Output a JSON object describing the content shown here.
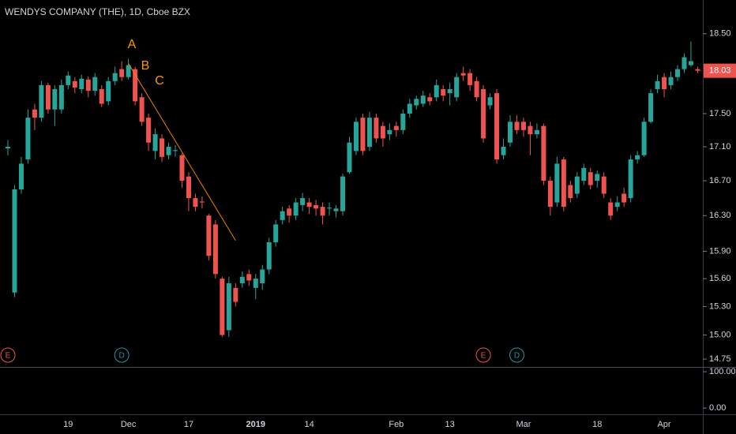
{
  "chart_data": {
    "type": "candlestick",
    "title": "WENDYS COMPANY (THE), 1D, Cboe BZX",
    "log_scale": true,
    "grid": false,
    "up_color": "#26a69a",
    "down_color": "#ef5350",
    "categories": [
      null,
      null,
      null,
      null,
      null,
      null,
      null,
      null,
      null,
      "19",
      null,
      null,
      null,
      null,
      null,
      null,
      null,
      null,
      "Dec",
      null,
      null,
      null,
      null,
      null,
      null,
      null,
      null,
      "17",
      null,
      null,
      null,
      null,
      null,
      null,
      null,
      null,
      null,
      "2019",
      null,
      null,
      null,
      null,
      null,
      null,
      null,
      "14",
      null,
      null,
      null,
      null,
      null,
      null,
      null,
      null,
      null,
      null,
      null,
      null,
      "Feb",
      null,
      null,
      null,
      null,
      null,
      null,
      null,
      "13",
      null,
      null,
      null,
      null,
      null,
      null,
      null,
      null,
      null,
      null,
      "Mar",
      null,
      null,
      null,
      null,
      null,
      null,
      null,
      null,
      null,
      null,
      "18",
      null,
      null,
      null,
      null,
      null,
      null,
      null,
      null,
      null,
      "Apr",
      null,
      null,
      null,
      null,
      null
    ],
    "open": [
      17.08,
      15.45,
      16.6,
      16.95,
      17.55,
      17.45,
      17.85,
      17.55,
      17.55,
      17.85,
      17.9,
      17.8,
      17.92,
      17.78,
      17.8,
      17.65,
      17.9,
      18.05,
      17.95,
      18.05,
      17.7,
      17.45,
      17.05,
      17.2,
      17.0,
      17.05,
      17.0,
      16.75,
      16.5,
      16.46,
      16.3,
      16.2,
      15.6,
      15.05,
      15.5,
      15.55,
      15.65,
      15.5,
      15.55,
      15.7,
      16.0,
      16.25,
      16.38,
      16.3,
      16.42,
      16.45,
      16.42,
      16.4,
      16.38,
      16.35,
      16.35,
      16.8,
      17.05,
      17.45,
      17.1,
      17.45,
      17.35,
      17.25,
      17.35,
      17.3,
      17.5,
      17.6,
      17.62,
      17.7,
      17.7,
      17.8,
      17.75,
      17.7,
      18.0,
      18.0,
      17.9,
      17.8,
      17.6,
      17.75,
      17.0,
      17.15,
      17.4,
      17.4,
      17.35,
      17.25,
      17.35,
      16.7,
      16.45,
      16.95,
      16.65,
      16.55,
      16.7,
      16.8,
      16.7,
      16.75,
      16.45,
      16.4,
      16.55,
      16.5,
      16.95,
      17.0,
      17.4,
      17.8,
      17.95,
      17.85,
      17.95,
      18.05,
      18.1,
      18.05
    ],
    "high": [
      17.18,
      16.65,
      16.98,
      17.55,
      17.62,
      17.9,
      17.88,
      17.85,
      17.92,
      18.02,
      17.95,
      17.98,
      17.96,
      18.0,
      17.85,
      17.95,
      18.08,
      18.15,
      18.18,
      18.08,
      17.75,
      17.5,
      17.32,
      17.25,
      17.15,
      17.12,
      17.02,
      16.8,
      16.55,
      16.52,
      16.32,
      16.25,
      15.62,
      15.62,
      15.55,
      15.68,
      15.7,
      15.65,
      15.75,
      16.05,
      16.25,
      16.4,
      16.42,
      16.5,
      16.56,
      16.5,
      16.48,
      16.45,
      16.45,
      16.42,
      16.78,
      17.22,
      17.45,
      17.5,
      17.52,
      17.5,
      17.4,
      17.38,
      17.4,
      17.55,
      17.68,
      17.72,
      17.78,
      17.75,
      17.92,
      17.85,
      17.88,
      18.0,
      18.08,
      18.05,
      17.95,
      17.85,
      17.75,
      17.8,
      17.2,
      17.48,
      17.48,
      17.45,
      17.4,
      17.38,
      17.38,
      16.75,
      16.98,
      16.98,
      16.7,
      16.8,
      16.9,
      16.85,
      16.82,
      16.8,
      16.5,
      16.52,
      16.62,
      17.0,
      17.05,
      17.45,
      17.8,
      17.98,
      18.0,
      18.02,
      18.1,
      18.25,
      18.4,
      18.08
    ],
    "low": [
      17.0,
      15.4,
      16.55,
      16.9,
      17.3,
      17.4,
      17.5,
      17.35,
      17.5,
      17.8,
      17.75,
      17.75,
      17.7,
      17.72,
      17.58,
      17.6,
      17.85,
      17.9,
      17.92,
      17.6,
      17.35,
      17.05,
      16.95,
      16.92,
      16.95,
      16.98,
      16.62,
      16.35,
      16.35,
      16.38,
      15.8,
      15.6,
      14.98,
      14.98,
      15.3,
      15.5,
      15.52,
      15.38,
      15.48,
      15.65,
      15.95,
      16.2,
      16.22,
      16.25,
      16.35,
      16.32,
      16.3,
      16.2,
      16.3,
      16.28,
      16.3,
      16.78,
      17.0,
      17.0,
      17.05,
      17.15,
      17.1,
      17.18,
      17.22,
      17.25,
      17.45,
      17.55,
      17.58,
      17.6,
      17.65,
      17.65,
      17.6,
      17.65,
      17.9,
      17.78,
      17.65,
      17.15,
      17.55,
      16.9,
      16.95,
      17.1,
      17.25,
      17.22,
      17.0,
      17.2,
      16.65,
      16.3,
      16.4,
      16.35,
      16.45,
      16.5,
      16.65,
      16.6,
      16.62,
      16.5,
      16.25,
      16.35,
      16.4,
      16.45,
      16.9,
      16.98,
      17.38,
      17.75,
      17.7,
      17.8,
      17.9,
      18.0,
      18.08,
      18.0
    ],
    "close": [
      17.1,
      16.6,
      16.9,
      17.45,
      17.45,
      17.85,
      17.55,
      17.8,
      17.85,
      17.97,
      17.82,
      17.93,
      17.78,
      17.95,
      17.62,
      17.9,
      18.0,
      17.95,
      18.1,
      17.65,
      17.4,
      17.15,
      17.25,
      16.98,
      17.1,
      17.06,
      16.7,
      16.5,
      16.4,
      16.45,
      15.85,
      15.65,
      15.0,
      15.55,
      15.35,
      15.62,
      15.58,
      15.6,
      15.7,
      16.0,
      16.2,
      16.35,
      16.3,
      16.45,
      16.5,
      16.4,
      16.38,
      16.3,
      16.39,
      16.38,
      16.75,
      17.15,
      17.4,
      17.05,
      17.45,
      17.2,
      17.2,
      17.3,
      17.3,
      17.5,
      17.62,
      17.68,
      17.72,
      17.65,
      17.85,
      17.72,
      17.8,
      17.95,
      17.97,
      17.85,
      17.7,
      17.2,
      17.7,
      16.95,
      17.1,
      17.4,
      17.3,
      17.3,
      17.25,
      17.3,
      16.7,
      16.4,
      16.9,
      16.4,
      16.5,
      16.75,
      16.85,
      16.65,
      16.78,
      16.55,
      16.3,
      16.45,
      16.45,
      16.95,
      17.0,
      17.4,
      17.75,
      17.9,
      17.8,
      17.95,
      18.05,
      18.2,
      18.15,
      18.03
    ],
    "ylim": [
      14.67,
      18.94
    ],
    "yticks": [
      {
        "value": 18.5,
        "label": "18.50"
      },
      {
        "value": 17.5,
        "label": "17.50"
      },
      {
        "value": 17.1,
        "label": "17.10"
      },
      {
        "value": 16.7,
        "label": "16.70"
      },
      {
        "value": 16.3,
        "label": "16.30"
      },
      {
        "value": 15.9,
        "label": "15.90"
      },
      {
        "value": 15.6,
        "label": "15.60"
      },
      {
        "value": 15.3,
        "label": "15.30"
      },
      {
        "value": 15,
        "label": "15.00"
      },
      {
        "value": 14.75,
        "label": "14.75"
      }
    ],
    "last_price": {
      "value": 18.03,
      "label": "18.03"
    },
    "trend_line": {
      "x": [
        18,
        34
      ],
      "y": [
        18.12,
        16.02
      ],
      "color": "#f57c00"
    },
    "annotations": [
      "A",
      "B",
      "C"
    ],
    "annotation_color": "#ff9800",
    "events": [
      {
        "label": "E",
        "x": 0,
        "color": "#ef5350"
      },
      {
        "label": "D",
        "x": 17,
        "color": "#2196a8"
      },
      {
        "label": "E",
        "x": 71,
        "color": "#ef5350"
      },
      {
        "label": "D",
        "x": 76,
        "color": "#2196a8"
      }
    ],
    "indicator": {
      "ylim": [
        -17,
        111
      ],
      "yticks": [
        {
          "value": 100,
          "label": "100.00"
        },
        {
          "value": 0,
          "label": "0.00"
        }
      ]
    }
  }
}
